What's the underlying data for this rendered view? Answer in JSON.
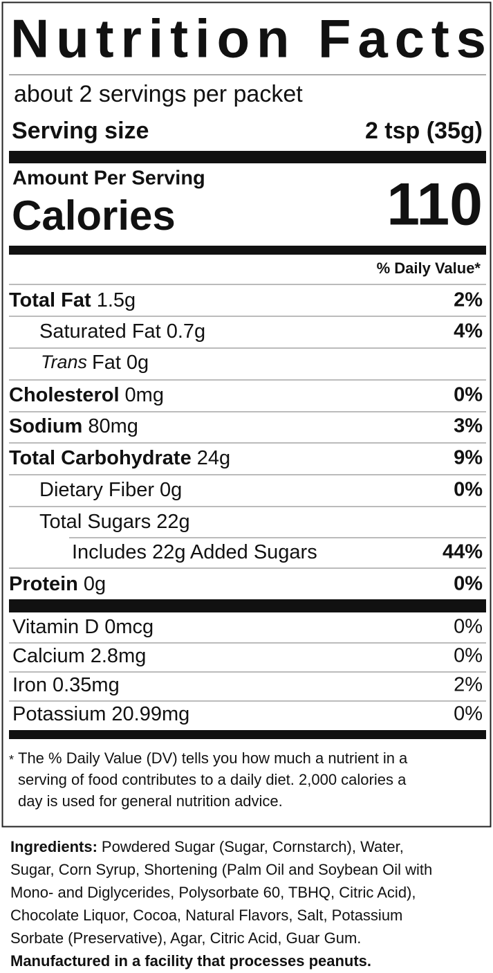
{
  "title": "Nutrition Facts",
  "servings": "about 2 servings per packet",
  "serving_size": {
    "label": "Serving size",
    "value": "2 tsp (35g)"
  },
  "amount_per_serving": "Amount Per Serving",
  "calories": {
    "label": "Calories",
    "value": "110"
  },
  "daily_value_header": "% Daily Value*",
  "nutrients": [
    {
      "name": "Total Fat",
      "amount": "1.5g",
      "dv": "2%"
    },
    {
      "name": "Saturated Fat",
      "amount": "0.7g",
      "dv": "4%"
    },
    {
      "name_italic": "Trans",
      "name": "Fat",
      "amount": "0g"
    },
    {
      "name": "Cholesterol",
      "amount": "0mg",
      "dv": "0%"
    },
    {
      "name": "Sodium",
      "amount": "80mg",
      "dv": "3%"
    },
    {
      "name": "Total Carbohydrate",
      "amount": "24g",
      "dv": "9%"
    },
    {
      "name": "Dietary Fiber",
      "amount": "0g",
      "dv": "0%"
    },
    {
      "name": "Total Sugars",
      "amount": "22g"
    },
    {
      "name": "Includes 22g Added Sugars",
      "dv": "44%"
    },
    {
      "name": "Protein",
      "amount": "0g",
      "dv": "0%"
    }
  ],
  "vitamins": [
    {
      "name": "Vitamin D",
      "amount": "0mcg",
      "dv": "0%"
    },
    {
      "name": "Calcium",
      "amount": "2.8mg",
      "dv": "0%"
    },
    {
      "name": "Iron",
      "amount": "0.35mg",
      "dv": "2%"
    },
    {
      "name": "Potassium",
      "amount": "20.99mg",
      "dv": "0%"
    }
  ],
  "footnote": {
    "mark": "*",
    "lines": [
      "The % Daily Value (DV) tells you how much a nutrient in a",
      "serving of food contributes to a daily diet. 2,000 calories a",
      "day is used for general nutrition advice."
    ]
  },
  "ingredients": {
    "label": "Ingredients:",
    "lines": [
      "Powdered Sugar (Sugar, Cornstarch), Water,",
      "Sugar, Corn Syrup, Shortening (Palm Oil and Soybean Oil with",
      "Mono- and Diglycerides, Polysorbate 60, TBHQ, Citric Acid),",
      "Chocolate Liquor, Cocoa, Natural Flavors, Salt, Potassium",
      "Sorbate (Preservative), Agar, Citric Acid, Guar Gum."
    ]
  },
  "allergen": "Manufactured in a facility that processes peanuts."
}
